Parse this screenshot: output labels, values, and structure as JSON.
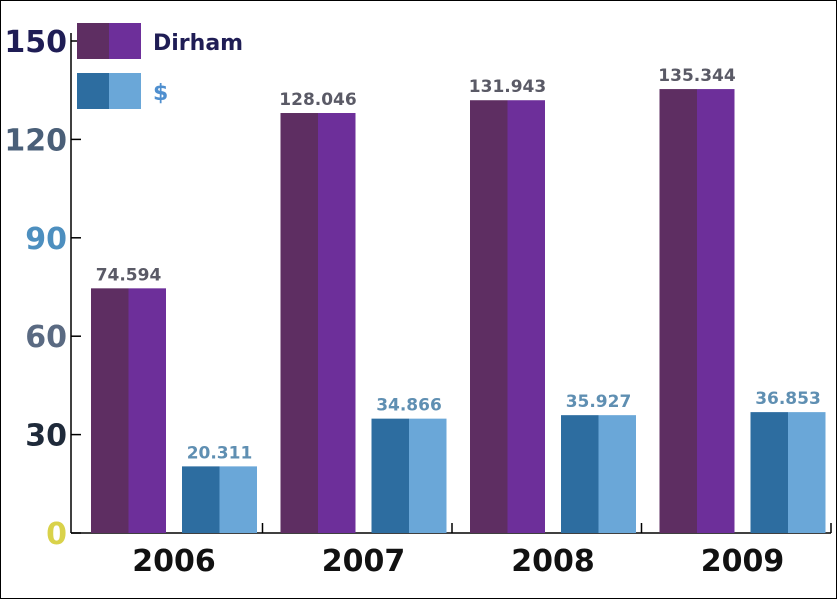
{
  "chart_data": {
    "type": "bar",
    "categories": [
      "2006",
      "2007",
      "2008",
      "2009"
    ],
    "series": [
      {
        "name": "Dirham",
        "values": [
          74.594,
          128.046,
          131.943,
          135.344
        ],
        "labels": [
          "74.594",
          "128.046",
          "131.943",
          "135.344"
        ]
      },
      {
        "name": "$",
        "values": [
          20.311,
          34.866,
          35.927,
          36.853
        ],
        "labels": [
          "20.311",
          "34.866",
          "35.927",
          "36.853"
        ]
      }
    ],
    "yticks": [
      "0",
      "30",
      "60",
      "90",
      "120",
      "150"
    ],
    "ylim": [
      0,
      150
    ],
    "title": "",
    "xlabel": "",
    "ylabel": "",
    "grid": false,
    "legend": "top-left",
    "colors": {
      "dirham_dark": "#5e2e62",
      "dirham_light": "#6d2f9a",
      "usd_dark": "#2d6da0",
      "usd_light": "#6aa7d8",
      "dirham_label": "#5a5a66",
      "usd_label": "#5f8fb2",
      "legend_dirham_text": "#1f1d55",
      "legend_usd_text": "#4f8fcf",
      "ytick_colors": [
        "#d9d24a",
        "#1f2a3a",
        "#5a6a82",
        "#4d8fbf",
        "#4a5f78",
        "#1f1d55"
      ]
    }
  }
}
